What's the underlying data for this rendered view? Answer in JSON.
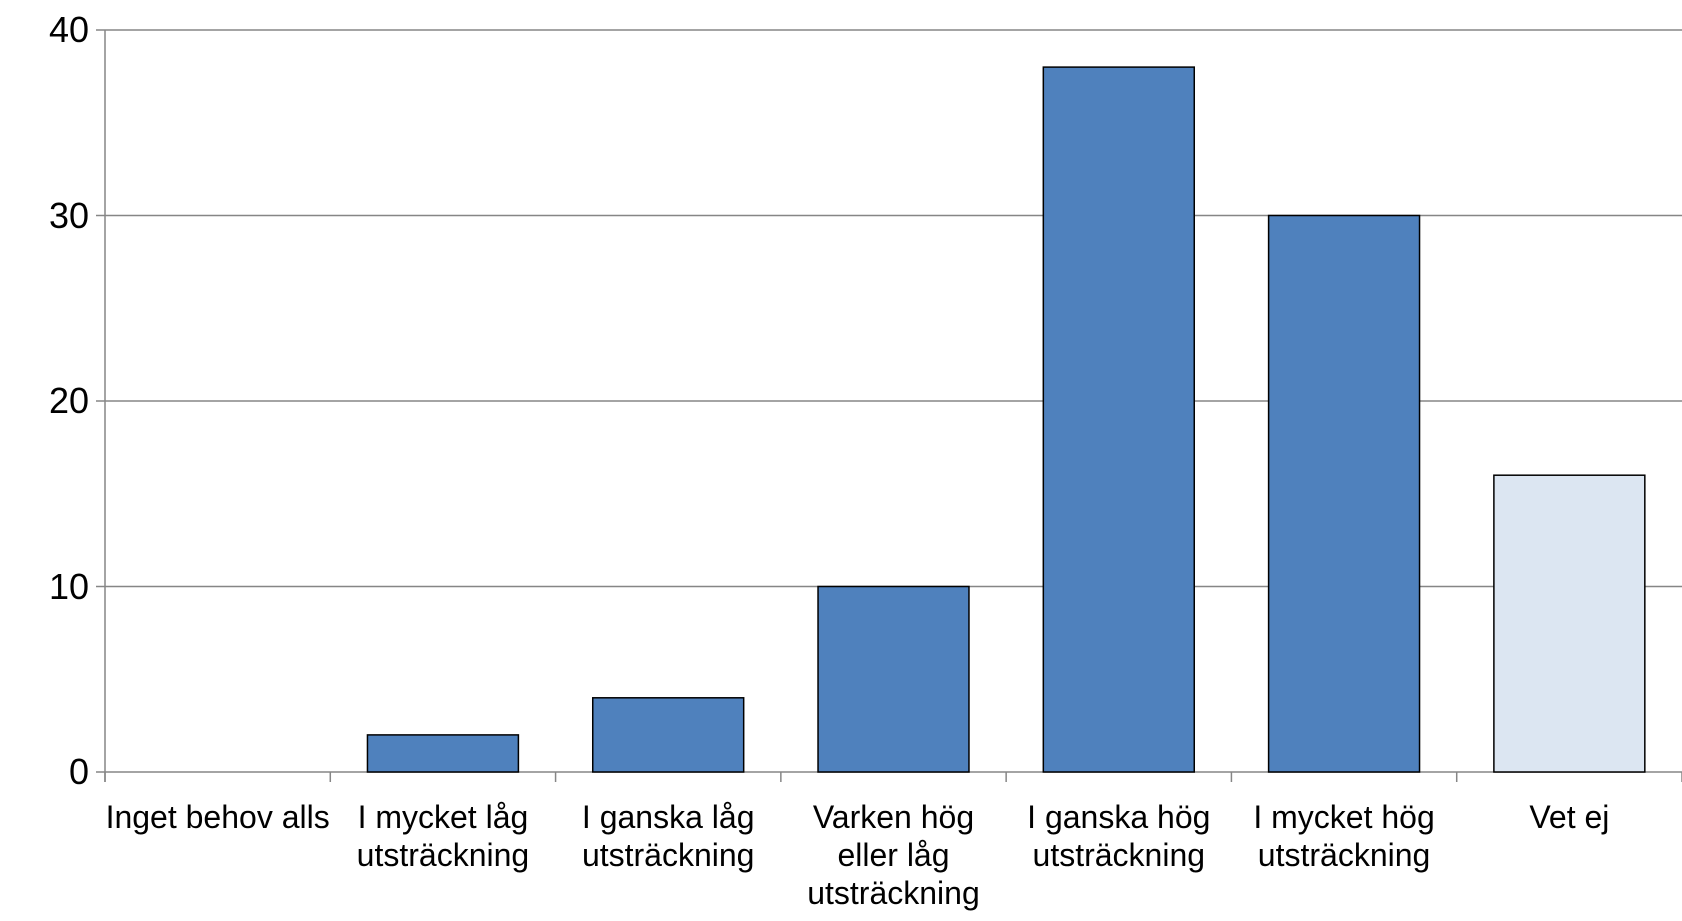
{
  "chart_data": {
    "type": "bar",
    "categories": [
      "Inget behov alls",
      "I mycket låg utsträckning",
      "I ganska låg utsträckning",
      "Varken hög eller låg utsträckning",
      "I ganska hög utsträckning",
      "I mycket hög utsträckning",
      "Vet ej"
    ],
    "values": [
      0,
      2,
      4,
      10,
      38,
      30,
      16
    ],
    "colors": [
      "#4f81bd",
      "#4f81bd",
      "#4f81bd",
      "#4f81bd",
      "#4f81bd",
      "#4f81bd",
      "#dce6f2"
    ],
    "ylim": [
      0,
      40
    ],
    "yticks": [
      0,
      10,
      20,
      30,
      40
    ],
    "grid": true
  }
}
